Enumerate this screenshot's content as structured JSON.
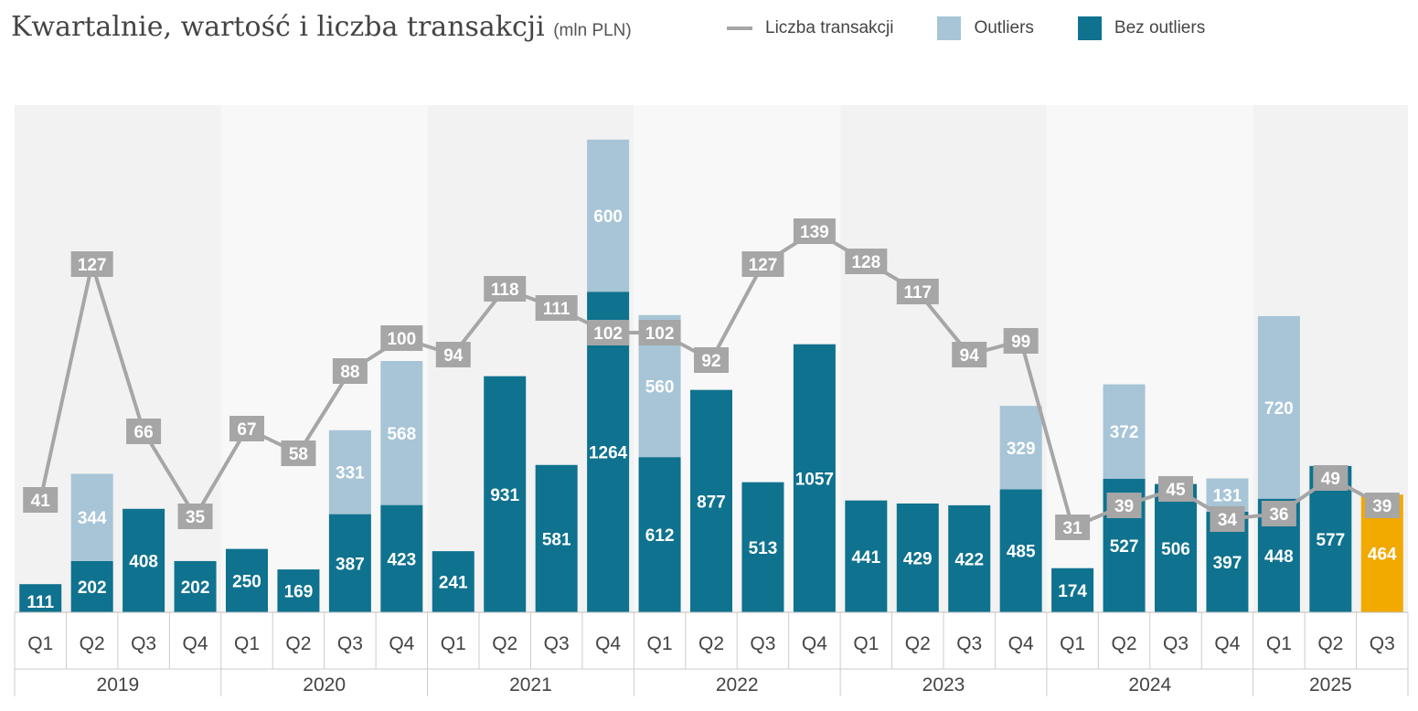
{
  "title": "Kwartalnie, wartość i liczba transakcji",
  "title_unit": "(mln PLN)",
  "legend": {
    "line": "Liczba transakcji",
    "outliers": "Outliers",
    "base": "Bez outliers"
  },
  "colors": {
    "base": "#0f728f",
    "outliers": "#a7c5d6",
    "highlight": "#f2a900",
    "line": "#a6a6a6",
    "label_bg": "#a6a6a6",
    "band_light": "#f2f2f2",
    "band_lighter": "#f8f8f8"
  },
  "chart_data": {
    "type": "bar",
    "stacked": true,
    "title": "Kwartalnie, wartość i liczba transakcji (mln PLN)",
    "years": [
      "2019",
      "2020",
      "2021",
      "2022",
      "2023",
      "2024",
      "2025"
    ],
    "quarters": [
      "Q1",
      "Q2",
      "Q3",
      "Q4",
      "Q1",
      "Q2",
      "Q3",
      "Q4",
      "Q1",
      "Q2",
      "Q3",
      "Q4",
      "Q1",
      "Q2",
      "Q3",
      "Q4",
      "Q1",
      "Q2",
      "Q3",
      "Q4",
      "Q1",
      "Q2",
      "Q3",
      "Q4",
      "Q1",
      "Q2",
      "Q3"
    ],
    "year_of_bar": [
      0,
      0,
      0,
      0,
      1,
      1,
      1,
      1,
      2,
      2,
      2,
      2,
      3,
      3,
      3,
      3,
      4,
      4,
      4,
      4,
      5,
      5,
      5,
      5,
      6,
      6,
      6
    ],
    "highlight_index": 26,
    "series": [
      {
        "name": "Bez outliers",
        "values": [
          111,
          202,
          408,
          202,
          250,
          169,
          387,
          423,
          241,
          931,
          581,
          1264,
          612,
          877,
          513,
          1057,
          441,
          429,
          422,
          485,
          174,
          527,
          506,
          397,
          448,
          577,
          464
        ]
      },
      {
        "name": "Outliers",
        "values": [
          0,
          344,
          0,
          0,
          0,
          0,
          331,
          568,
          0,
          0,
          0,
          600,
          560,
          0,
          0,
          0,
          0,
          0,
          0,
          329,
          0,
          372,
          0,
          131,
          720,
          0,
          0
        ]
      },
      {
        "name": "Liczba transakcji",
        "values": [
          41,
          127,
          66,
          35,
          67,
          58,
          88,
          100,
          94,
          118,
          111,
          102,
          102,
          92,
          127,
          139,
          128,
          117,
          94,
          99,
          31,
          39,
          45,
          34,
          36,
          49,
          39
        ]
      }
    ],
    "ylim_value": [
      0,
      2000
    ],
    "ylim_count": [
      0,
      185
    ]
  }
}
